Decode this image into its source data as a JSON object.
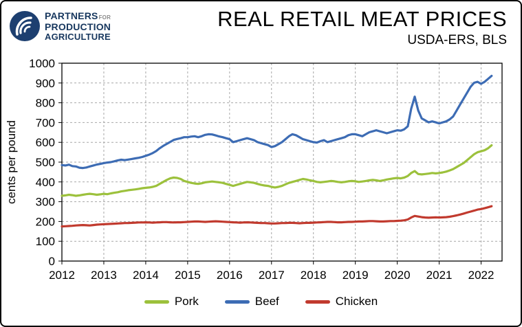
{
  "header": {
    "logo": {
      "line1": "PARTNERS",
      "line1_suffix": "FOR",
      "line2": "PRODUCTION",
      "line3": "AGRICULTURE",
      "icon_color": "#1d3f70"
    }
  },
  "chart_data": {
    "type": "line",
    "title": "REAL RETAIL MEAT PRICES",
    "subtitle": "USDA-ERS, BLS",
    "ylabel": "cents per pound",
    "ylim": [
      0,
      1000
    ],
    "ytick_step": 100,
    "x_domain": [
      2012,
      2022.5
    ],
    "x_ticks": [
      2012,
      2013,
      2014,
      2015,
      2016,
      2017,
      2018,
      2019,
      2020,
      2021,
      2022
    ],
    "x_start": 2012,
    "points_per_year": 12,
    "grid": "dashed",
    "legend_position": "bottom",
    "series": [
      {
        "name": "Pork",
        "color": "#9cc13c",
        "values": [
          330,
          332,
          335,
          333,
          330,
          332,
          335,
          338,
          340,
          338,
          335,
          337,
          340,
          338,
          342,
          345,
          348,
          352,
          355,
          358,
          360,
          362,
          365,
          368,
          370,
          372,
          375,
          380,
          390,
          400,
          410,
          418,
          422,
          420,
          415,
          405,
          400,
          395,
          392,
          390,
          393,
          398,
          400,
          402,
          400,
          398,
          395,
          390,
          385,
          380,
          385,
          390,
          395,
          400,
          398,
          395,
          390,
          385,
          382,
          380,
          375,
          372,
          375,
          380,
          388,
          395,
          400,
          405,
          410,
          415,
          412,
          408,
          405,
          400,
          398,
          400,
          402,
          405,
          403,
          400,
          398,
          400,
          403,
          405,
          403,
          400,
          402,
          405,
          408,
          410,
          408,
          405,
          408,
          412,
          415,
          418,
          420,
          418,
          422,
          430,
          445,
          455,
          440,
          438,
          440,
          442,
          445,
          443,
          445,
          448,
          452,
          458,
          465,
          475,
          485,
          495,
          510,
          525,
          540,
          550,
          555,
          560,
          570,
          585
        ]
      },
      {
        "name": "Beef",
        "color": "#3d6cb4",
        "values": [
          485,
          483,
          487,
          480,
          478,
          472,
          470,
          473,
          478,
          483,
          488,
          491,
          495,
          498,
          500,
          504,
          509,
          512,
          510,
          513,
          516,
          519,
          522,
          526,
          532,
          538,
          546,
          556,
          570,
          582,
          592,
          602,
          612,
          617,
          621,
          626,
          626,
          629,
          631,
          626,
          631,
          638,
          641,
          640,
          635,
          630,
          626,
          621,
          616,
          601,
          606,
          611,
          616,
          621,
          616,
          611,
          601,
          596,
          591,
          586,
          576,
          581,
          591,
          601,
          616,
          631,
          641,
          636,
          626,
          616,
          611,
          606,
          601,
          599,
          606,
          611,
          601,
          606,
          611,
          616,
          621,
          626,
          636,
          641,
          641,
          636,
          631,
          641,
          651,
          656,
          661,
          656,
          651,
          646,
          651,
          656,
          661,
          659,
          666,
          681,
          770,
          831,
          761,
          721,
          711,
          701,
          706,
          701,
          696,
          701,
          706,
          716,
          731,
          761,
          791,
          821,
          851,
          881,
          901,
          906,
          896,
          906,
          921,
          936
        ]
      },
      {
        "name": "Chicken",
        "color": "#c13a2e",
        "values": [
          175,
          176,
          177,
          178,
          180,
          181,
          182,
          181,
          180,
          182,
          184,
          185,
          186,
          187,
          188,
          189,
          190,
          191,
          192,
          192,
          193,
          194,
          195,
          195,
          196,
          195,
          194,
          195,
          196,
          197,
          197,
          196,
          195,
          196,
          196,
          197,
          198,
          199,
          200,
          200,
          199,
          198,
          199,
          200,
          201,
          200,
          199,
          198,
          197,
          196,
          195,
          194,
          195,
          196,
          195,
          194,
          193,
          192,
          192,
          191,
          190,
          190,
          191,
          192,
          192,
          193,
          193,
          192,
          191,
          192,
          193,
          193,
          194,
          195,
          196,
          197,
          198,
          198,
          197,
          196,
          196,
          197,
          198,
          198,
          199,
          200,
          200,
          201,
          202,
          202,
          201,
          200,
          200,
          201,
          202,
          202,
          203,
          204,
          206,
          210,
          220,
          228,
          225,
          222,
          220,
          219,
          220,
          221,
          220,
          221,
          222,
          224,
          227,
          231,
          235,
          240,
          245,
          250,
          255,
          260,
          263,
          267,
          272,
          277
        ]
      }
    ]
  }
}
